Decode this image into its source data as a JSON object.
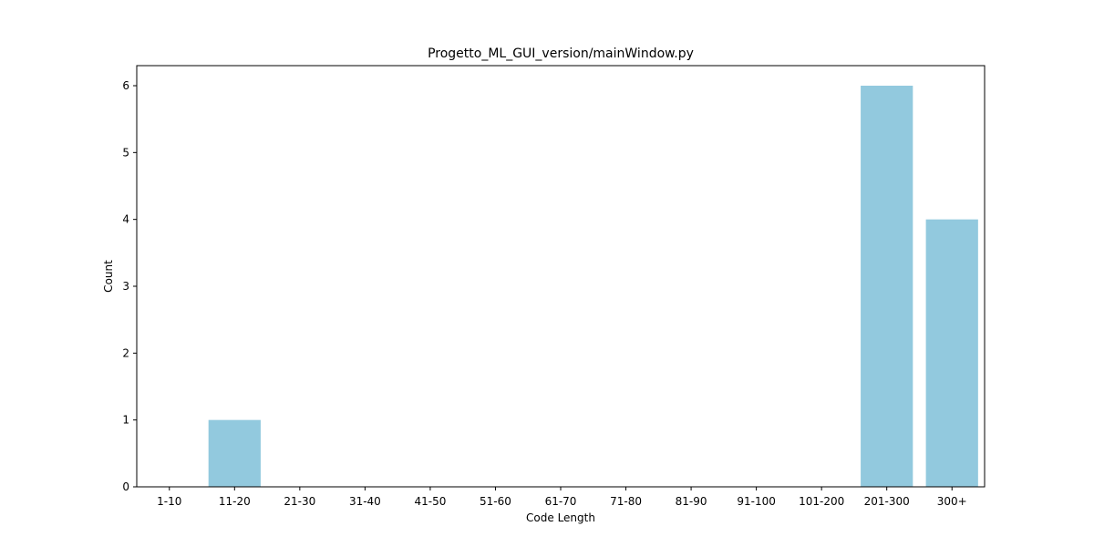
{
  "chart_data": {
    "type": "bar",
    "title": "Progetto_ML_GUI_version/mainWindow.py",
    "xlabel": "Code Length",
    "ylabel": "Count",
    "categories": [
      "1-10",
      "11-20",
      "21-30",
      "31-40",
      "41-50",
      "51-60",
      "61-70",
      "71-80",
      "81-90",
      "91-100",
      "101-200",
      "201-300",
      "300+"
    ],
    "values": [
      0,
      1,
      0,
      0,
      0,
      0,
      0,
      0,
      0,
      0,
      0,
      6,
      4
    ],
    "ylim": [
      0,
      6.3
    ],
    "yticks": [
      0,
      1,
      2,
      3,
      4,
      5,
      6
    ],
    "bar_color": "#92c9de",
    "grid": false,
    "legend": "none"
  }
}
